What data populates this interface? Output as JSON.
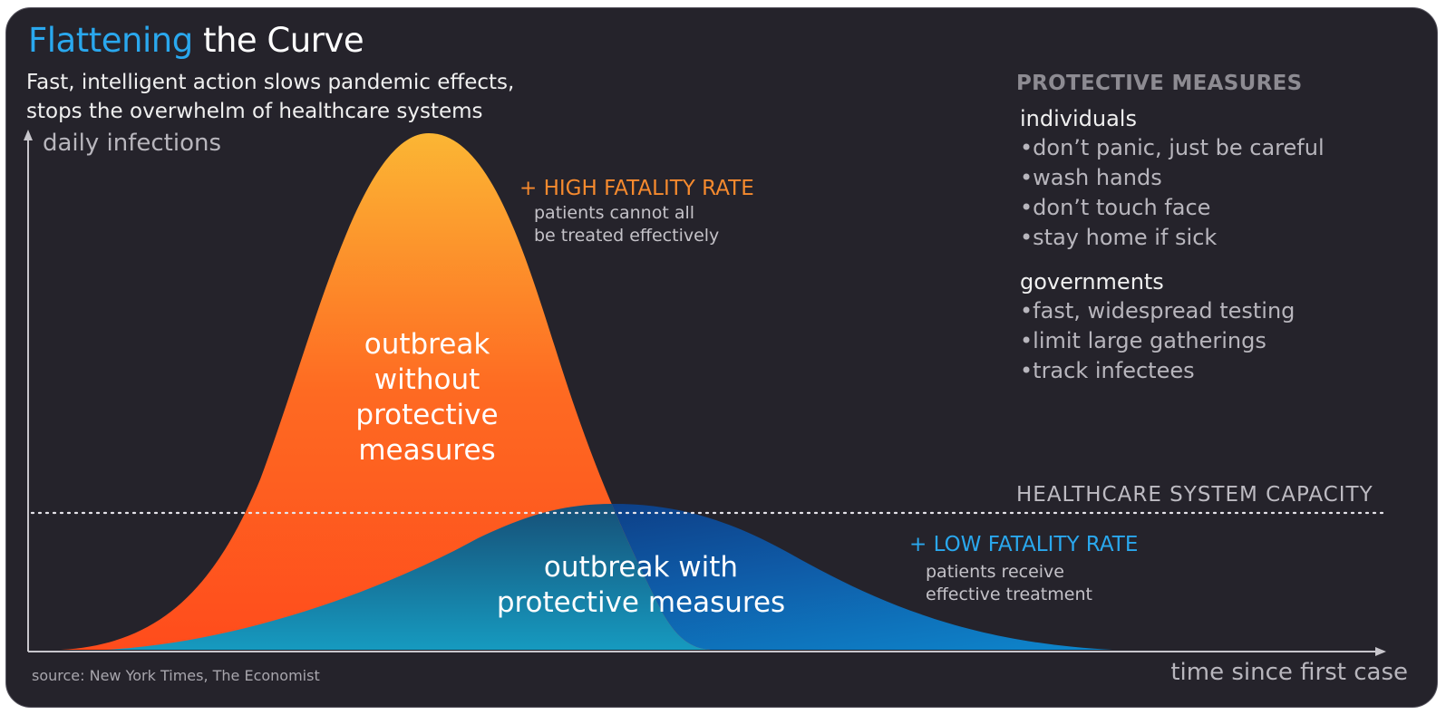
{
  "title": {
    "accent": "Flattening",
    "rest": " the Curve"
  },
  "subtitle": {
    "line1": "Fast, intelligent action slows pandemic effects,",
    "line2": "stops the overwhelm of healthcare systems"
  },
  "axes": {
    "y_label": "daily infections",
    "x_label": "time since first case"
  },
  "curves": {
    "without": {
      "label_lines": [
        "outbreak",
        "without",
        "protective",
        "measures"
      ],
      "rate_title": "+ HIGH FATALITY RATE",
      "rate_desc": [
        "patients cannot all",
        "be treated effectively"
      ],
      "gradient": [
        "#fbb634",
        "#fe5b1b",
        "#ff4c1c"
      ]
    },
    "with": {
      "label_lines": [
        "outbreak with",
        "protective measures"
      ],
      "rate_title": "+ LOW FATALITY RATE",
      "rate_desc": [
        "patients receive",
        "effective treatment"
      ],
      "gradient": [
        "#0b2f80",
        "#1277c2",
        "#0094c6"
      ]
    }
  },
  "capacity_label": "HEALTHCARE SYSTEM CAPACITY",
  "measures": {
    "heading": "PROTECTIVE MEASURES",
    "groups": [
      {
        "title": "individuals",
        "items": [
          "don’t panic, just be careful",
          "wash hands",
          "don’t touch face",
          "stay home if sick"
        ]
      },
      {
        "title": "governments",
        "items": [
          "fast, widespread testing",
          "limit large gatherings",
          "track infectees"
        ]
      }
    ]
  },
  "source": "source: New York Times, The Economist",
  "colors": {
    "background": "#25232b",
    "accent_blue": "#2aa8ee",
    "accent_orange": "#f68a2e",
    "axis": "#c8c6cc"
  }
}
